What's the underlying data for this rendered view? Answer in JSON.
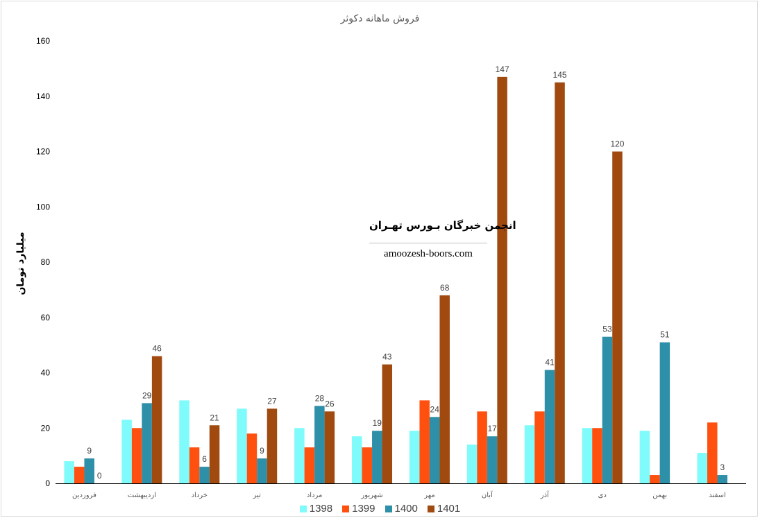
{
  "chart_data": {
    "type": "bar",
    "title": "فروش ماهانه دکوثر",
    "ylabel": "میلیارد تومان",
    "xlabel": "",
    "ylim": [
      0,
      160
    ],
    "yticks": [
      0,
      20,
      40,
      60,
      80,
      100,
      120,
      140,
      160
    ],
    "grid": false,
    "legend": "bottom",
    "categories": [
      "فروردین",
      "اردیبهشت",
      "خرداد",
      "تیر",
      "مرداد",
      "شهریور",
      "مهر",
      "آبان",
      "آذر",
      "دی",
      "بهمن",
      "اسفند"
    ],
    "series": [
      {
        "name": "1398",
        "color": "#7ffbfb",
        "values": [
          8,
          23,
          30,
          27,
          20,
          17,
          19,
          14,
          21,
          20,
          19,
          11
        ]
      },
      {
        "name": "1399",
        "color": "#ff5010",
        "values": [
          6,
          20,
          13,
          18,
          13,
          13,
          30,
          26,
          26,
          20,
          3,
          22
        ]
      },
      {
        "name": "1400",
        "color": "#2e8fa8",
        "values": [
          9,
          29,
          6,
          9,
          28,
          19,
          24,
          17,
          41,
          53,
          51,
          3
        ],
        "data_labels": true
      },
      {
        "name": "1401",
        "color": "#a04a10",
        "values": [
          0,
          46,
          21,
          27,
          26,
          43,
          68,
          147,
          145,
          120,
          null,
          null
        ],
        "data_labels": true
      }
    ]
  },
  "watermark": {
    "title": "انجمن خبرگان بـورس تهـران",
    "url": "amoozesh-boors.com"
  }
}
